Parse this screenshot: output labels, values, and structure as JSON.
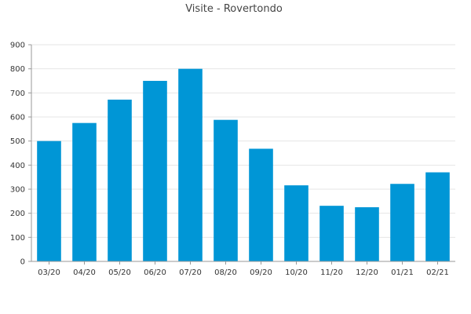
{
  "chart_data": {
    "type": "bar",
    "title": "Visite - Rovertondo",
    "xlabel": "",
    "ylabel": "",
    "categories": [
      "03/20",
      "04/20",
      "05/20",
      "06/20",
      "07/20",
      "08/20",
      "09/20",
      "10/20",
      "11/20",
      "12/20",
      "01/21",
      "02/21"
    ],
    "values": [
      500,
      575,
      672,
      750,
      800,
      588,
      468,
      316,
      231,
      225,
      322,
      370
    ],
    "ylim": [
      0,
      900
    ],
    "yticks": [
      0,
      100,
      200,
      300,
      400,
      500,
      600,
      700,
      800,
      900
    ],
    "grid": true,
    "legend": "none",
    "bar_color": "#0096d6"
  }
}
